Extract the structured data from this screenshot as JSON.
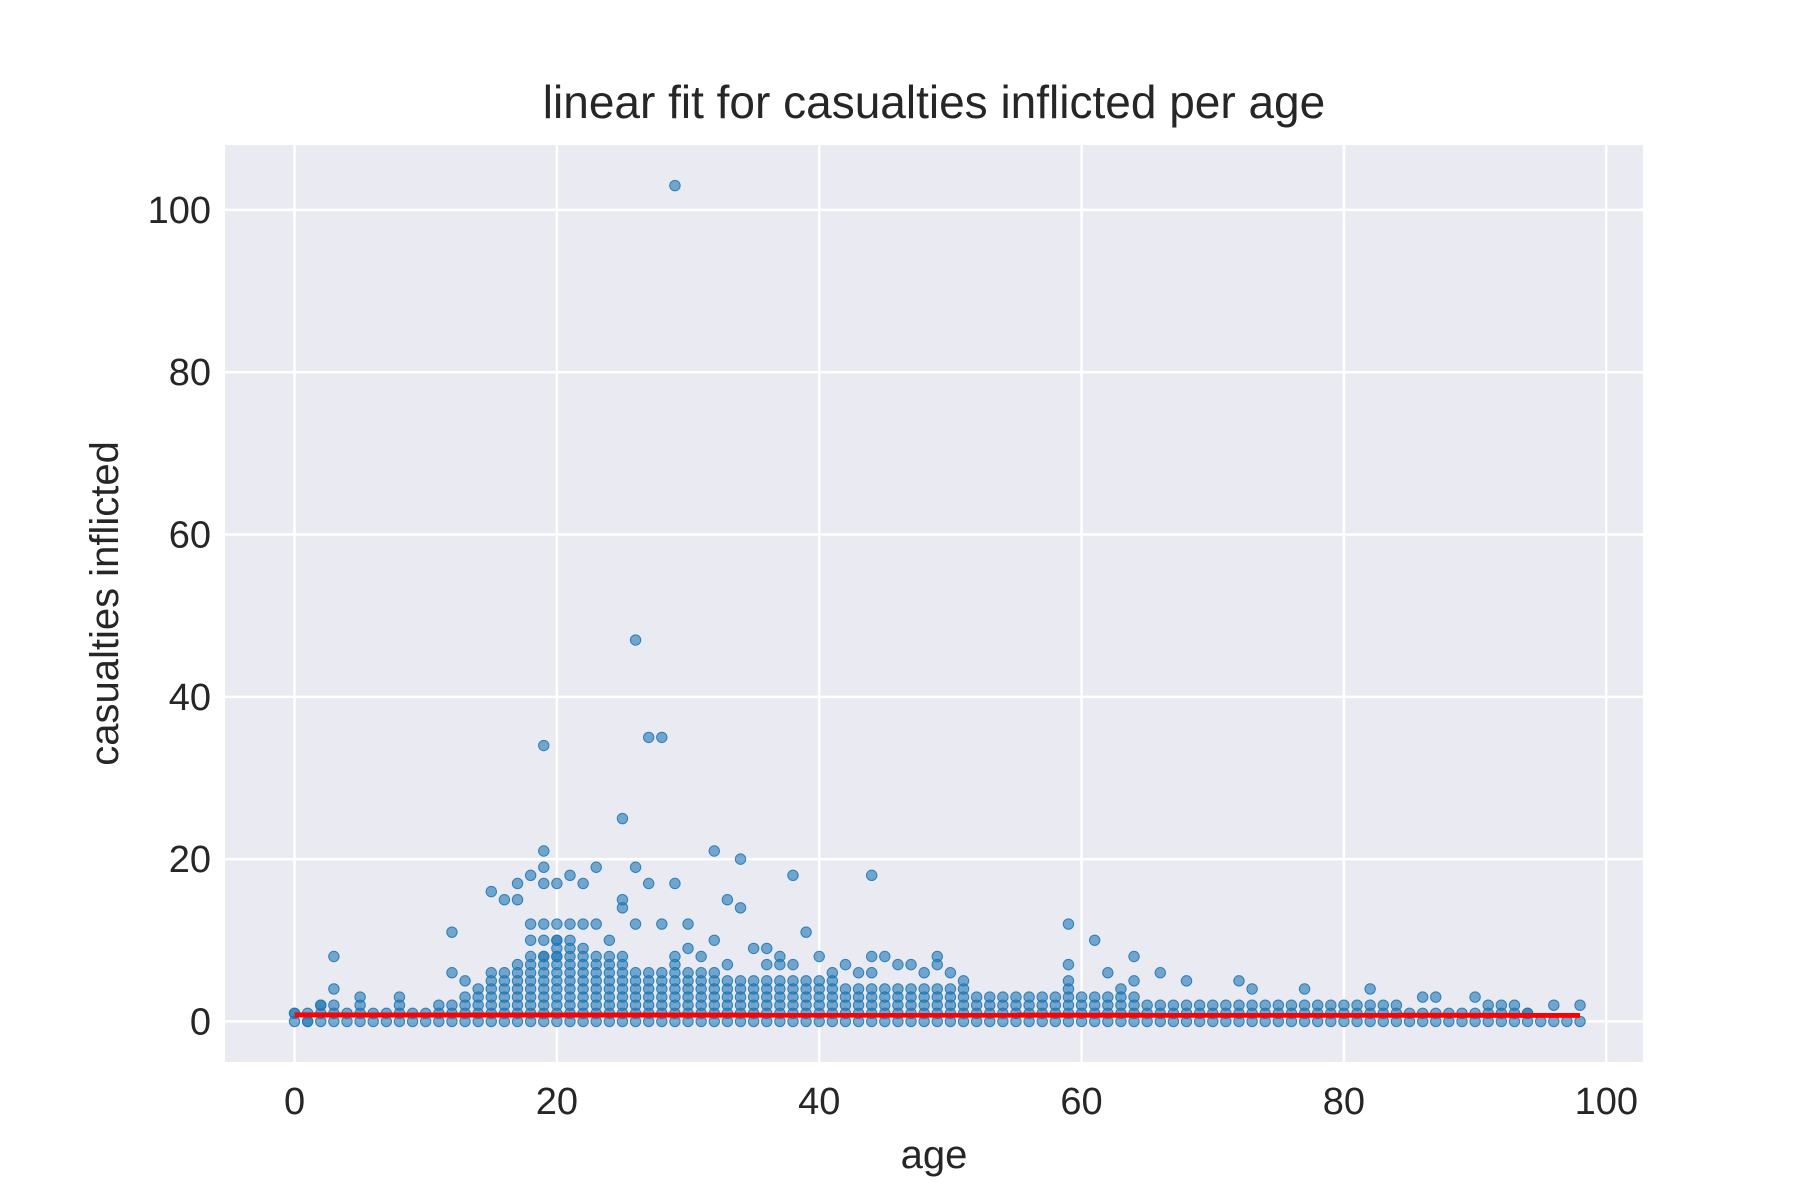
{
  "chart_data": {
    "type": "scatter",
    "title": "linear fit for casualties inflicted per age",
    "xlabel": "age",
    "ylabel": "casualties inflicted",
    "xlim": [
      -5.3,
      102.8
    ],
    "ylim": [
      -5,
      108
    ],
    "xticks": [
      0,
      20,
      40,
      60,
      80,
      100
    ],
    "yticks": [
      0,
      20,
      40,
      60,
      80,
      100
    ],
    "grid": true,
    "style": "seaborn-darkgrid",
    "point_color": "#1f77b4",
    "point_alpha": 0.6,
    "fit_color": "#ff0000",
    "dense_band": {
      "note": "dense vertical columns of points at every integer age from 0 to 98, filled from 0 up to the listed top value",
      "ages": [
        0,
        1,
        2,
        3,
        4,
        5,
        6,
        7,
        8,
        9,
        10,
        11,
        12,
        13,
        14,
        15,
        16,
        17,
        18,
        19,
        20,
        21,
        22,
        23,
        24,
        25,
        26,
        27,
        28,
        29,
        30,
        31,
        32,
        33,
        34,
        35,
        36,
        37,
        38,
        39,
        40,
        41,
        42,
        43,
        44,
        45,
        46,
        47,
        48,
        49,
        50,
        51,
        52,
        53,
        54,
        55,
        56,
        57,
        58,
        59,
        60,
        61,
        62,
        63,
        64,
        65,
        66,
        67,
        68,
        69,
        70,
        71,
        72,
        73,
        74,
        75,
        76,
        77,
        78,
        79,
        80,
        81,
        82,
        83,
        84,
        85,
        86,
        87,
        88,
        89,
        90,
        91,
        92,
        93,
        94,
        95,
        96,
        97,
        98
      ],
      "column_max": [
        1,
        1,
        2,
        2,
        1,
        2,
        1,
        1,
        2,
        1,
        1,
        2,
        2,
        3,
        4,
        6,
        6,
        7,
        8,
        8,
        10,
        9,
        9,
        8,
        8,
        8,
        6,
        6,
        6,
        7,
        6,
        6,
        6,
        5,
        5,
        5,
        5,
        5,
        5,
        5,
        5,
        5,
        4,
        4,
        4,
        4,
        4,
        4,
        4,
        4,
        4,
        4,
        3,
        3,
        3,
        3,
        3,
        3,
        3,
        3,
        3,
        3,
        3,
        3,
        3,
        2,
        2,
        2,
        2,
        2,
        2,
        2,
        2,
        2,
        2,
        2,
        2,
        2,
        2,
        2,
        2,
        2,
        2,
        2,
        2,
        1,
        1,
        1,
        1,
        1,
        1,
        1,
        1,
        1,
        1,
        0,
        0,
        0,
        0
      ]
    },
    "points": {
      "x": [
        0,
        1,
        2,
        3,
        3,
        5,
        8,
        12,
        12,
        13,
        15,
        16,
        17,
        17,
        18,
        18,
        18,
        19,
        19,
        19,
        19,
        19,
        19,
        19,
        20,
        20,
        20,
        20,
        21,
        21,
        21,
        22,
        22,
        23,
        23,
        24,
        25,
        25,
        25,
        26,
        26,
        26,
        27,
        27,
        28,
        28,
        29,
        29,
        29,
        30,
        30,
        31,
        32,
        32,
        33,
        33,
        34,
        34,
        35,
        36,
        36,
        37,
        37,
        38,
        38,
        39,
        40,
        41,
        42,
        43,
        44,
        44,
        44,
        45,
        46,
        47,
        48,
        49,
        49,
        50,
        51,
        59,
        59,
        59,
        59,
        61,
        62,
        63,
        64,
        64,
        66,
        68,
        72,
        73,
        77,
        82,
        86,
        87,
        90,
        91,
        92,
        93,
        94,
        96,
        98
      ],
      "y": [
        1,
        0,
        2,
        8,
        4,
        3,
        3,
        11,
        6,
        5,
        16,
        15,
        15,
        17,
        18,
        12,
        10,
        34,
        21,
        19,
        17,
        12,
        10,
        8,
        17,
        12,
        10,
        8,
        18,
        12,
        10,
        17,
        12,
        19,
        12,
        10,
        25,
        15,
        14,
        47,
        19,
        12,
        35,
        17,
        35,
        12,
        103,
        17,
        8,
        12,
        9,
        8,
        21,
        10,
        15,
        7,
        20,
        14,
        9,
        9,
        7,
        8,
        7,
        18,
        7,
        11,
        8,
        6,
        7,
        6,
        18,
        8,
        6,
        8,
        7,
        7,
        6,
        8,
        7,
        6,
        5,
        12,
        7,
        5,
        4,
        10,
        6,
        4,
        8,
        5,
        6,
        5,
        5,
        4,
        4,
        4,
        3,
        3,
        3,
        2,
        2,
        2,
        1,
        2,
        2
      ],
      "outliers_note": "isolated points above the dense band"
    },
    "fit": {
      "x": [
        0,
        98
      ],
      "y": [
        0.8,
        0.75
      ]
    }
  }
}
